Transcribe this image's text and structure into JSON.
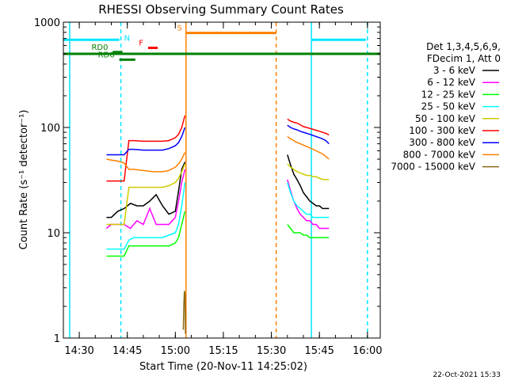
{
  "chart_data": {
    "type": "line",
    "title": "RHESSI Observing Summary Count Rates",
    "xlabel": "Start Time (20-Nov-11 14:25:02)",
    "ylabel": "Count Rate (s⁻¹ detector⁻¹)",
    "yscale": "log",
    "ylim": [
      1,
      1000
    ],
    "xlim": [
      "14:25:02",
      "16:04:00"
    ],
    "x_ticks": [
      "14:30",
      "14:45",
      "15:00",
      "15:15",
      "15:30",
      "15:45",
      "16:00"
    ],
    "y_ticks": [
      "1",
      "10",
      "100",
      "1000"
    ],
    "legend_header": [
      "Det 1,3,4,5,6,9,",
      "FDecim 1, Att 0"
    ],
    "legend_position": "right",
    "timestamp": "22-Oct-2021 15:33",
    "series": [
      {
        "name": "3 - 6 keV",
        "color": "#000000",
        "segments": [
          {
            "x": [
              "14:38:30",
              "14:40",
              "14:42",
              "14:44",
              "14:46",
              "14:48",
              "14:50",
              "14:52",
              "14:54",
              "14:56",
              "14:58",
              "15:00",
              "15:01",
              "15:02",
              "15:03"
            ],
            "y": [
              14,
              14,
              16,
              17,
              19,
              18,
              18,
              20,
              23,
              18,
              15,
              16,
              25,
              40,
              47
            ]
          },
          {
            "x": [
              "15:35",
              "15:36",
              "15:37",
              "15:38",
              "15:39",
              "15:40",
              "15:41",
              "15:42",
              "15:43",
              "15:44",
              "15:45",
              "15:46",
              "15:47",
              "15:48"
            ],
            "y": [
              55,
              44,
              36,
              32,
              28,
              24,
              22,
              20,
              19,
              18,
              18,
              17,
              17,
              17
            ]
          }
        ]
      },
      {
        "name": "6 - 12 keV",
        "color": "#ff00ff",
        "segments": [
          {
            "x": [
              "14:38:30",
              "14:40",
              "14:42",
              "14:44",
              "14:46",
              "14:48",
              "14:50",
              "14:52",
              "14:54",
              "14:56",
              "14:58",
              "15:00",
              "15:01",
              "15:02",
              "15:03"
            ],
            "y": [
              11,
              12,
              12,
              12,
              11,
              13,
              12,
              17,
              12,
              12,
              12,
              14,
              20,
              30,
              40
            ]
          },
          {
            "x": [
              "15:35",
              "15:36",
              "15:37",
              "15:38",
              "15:39",
              "15:40",
              "15:41",
              "15:42",
              "15:43",
              "15:44",
              "15:45",
              "15:46",
              "15:47",
              "15:48"
            ],
            "y": [
              32,
              25,
              20,
              17,
              15,
              14,
              13,
              13,
              12,
              12,
              11,
              11,
              11,
              11
            ]
          }
        ]
      },
      {
        "name": "12 - 25 keV",
        "color": "#00ff00",
        "segments": [
          {
            "x": [
              "14:38:30",
              "14:40",
              "14:42",
              "14:44",
              "14:45:30",
              "14:47",
              "14:50",
              "14:53",
              "14:56",
              "14:58",
              "15:00",
              "15:01",
              "15:02",
              "15:03"
            ],
            "y": [
              6,
              6,
              6,
              6,
              7.5,
              7.5,
              7.5,
              7.5,
              7.5,
              7.5,
              8,
              9,
              12,
              16
            ]
          },
          {
            "x": [
              "15:35",
              "15:36",
              "15:37",
              "15:38",
              "15:39",
              "15:40",
              "15:41",
              "15:42",
              "15:43",
              "15:44",
              "15:45",
              "15:46",
              "15:47",
              "15:48"
            ],
            "y": [
              12,
              11,
              10,
              10,
              10,
              9.5,
              9.5,
              9,
              9,
              9,
              9,
              9,
              9,
              9
            ]
          }
        ]
      },
      {
        "name": "25 - 50 keV",
        "color": "#00ffff",
        "segments": [
          {
            "x": [
              "14:38:30",
              "14:40",
              "14:42",
              "14:44",
              "14:45:30",
              "14:47",
              "14:50",
              "14:53",
              "14:56",
              "14:58",
              "15:00",
              "15:01",
              "15:02",
              "15:03"
            ],
            "y": [
              7,
              7,
              7,
              7,
              8.5,
              9,
              9,
              9,
              9,
              9.5,
              10,
              12,
              18,
              30
            ]
          },
          {
            "x": [
              "15:35",
              "15:36",
              "15:37",
              "15:38",
              "15:39",
              "15:40",
              "15:41",
              "15:42",
              "15:43",
              "15:44",
              "15:45",
              "15:46",
              "15:47",
              "15:48"
            ],
            "y": [
              30,
              24,
              20,
              18,
              17,
              16,
              15,
              15,
              14,
              14,
              14,
              14,
              14,
              14
            ]
          }
        ]
      },
      {
        "name": "50 - 100 keV",
        "color": "#cccc00",
        "segments": [
          {
            "x": [
              "14:38:30",
              "14:40",
              "14:42",
              "14:44",
              "14:45:30",
              "14:47",
              "14:50",
              "14:53",
              "14:56",
              "14:58",
              "15:00",
              "15:01",
              "15:02",
              "15:03"
            ],
            "y": [
              12,
              12,
              12,
              12,
              27,
              27,
              27,
              27,
              27,
              28,
              30,
              33,
              38,
              45
            ]
          },
          {
            "x": [
              "15:35",
              "15:36",
              "15:37",
              "15:38",
              "15:39",
              "15:40",
              "15:41",
              "15:42",
              "15:43",
              "15:44",
              "15:45",
              "15:46",
              "15:47",
              "15:48"
            ],
            "y": [
              45,
              42,
              40,
              38,
              37,
              36,
              35,
              35,
              34,
              34,
              33,
              32,
              32,
              32
            ]
          }
        ]
      },
      {
        "name": "100 - 300 keV",
        "color": "#ff0000",
        "segments": [
          {
            "x": [
              "14:38:30",
              "14:40",
              "14:42",
              "14:44",
              "14:45:30",
              "14:47",
              "14:50",
              "14:53",
              "14:56",
              "14:58",
              "15:00",
              "15:01",
              "15:02",
              "15:03"
            ],
            "y": [
              31,
              31,
              31,
              31,
              75,
              75,
              74,
              74,
              74,
              75,
              80,
              86,
              100,
              130
            ]
          },
          {
            "x": [
              "15:35",
              "15:36",
              "15:37",
              "15:38",
              "15:39",
              "15:40",
              "15:41",
              "15:42",
              "15:43",
              "15:44",
              "15:45",
              "15:46",
              "15:47",
              "15:48"
            ],
            "y": [
              120,
              115,
              112,
              110,
              106,
              102,
              100,
              98,
              96,
              94,
              92,
              90,
              88,
              85
            ]
          }
        ]
      },
      {
        "name": "300 - 800 keV",
        "color": "#0000ff",
        "segments": [
          {
            "x": [
              "14:38:30",
              "14:40",
              "14:42",
              "14:44",
              "14:45:30",
              "14:47",
              "14:50",
              "14:53",
              "14:56",
              "14:58",
              "15:00",
              "15:01",
              "15:02",
              "15:03"
            ],
            "y": [
              55,
              55,
              55,
              55,
              62,
              62,
              61,
              61,
              61,
              63,
              67,
              72,
              82,
              100
            ]
          },
          {
            "x": [
              "15:35",
              "15:36",
              "15:37",
              "15:38",
              "15:39",
              "15:40",
              "15:41",
              "15:42",
              "15:43",
              "15:44",
              "15:45",
              "15:46",
              "15:47",
              "15:48"
            ],
            "y": [
              105,
              100,
              97,
              95,
              92,
              90,
              88,
              86,
              84,
              82,
              80,
              78,
              75,
              70
            ]
          }
        ]
      },
      {
        "name": "800 - 7000 keV",
        "color": "#ff8000",
        "segments": [
          {
            "x": [
              "14:38:30",
              "14:40",
              "14:42",
              "14:44",
              "14:45:30",
              "14:47",
              "14:50",
              "14:53",
              "14:56",
              "14:58",
              "15:00",
              "15:01",
              "15:02",
              "15:03"
            ],
            "y": [
              50,
              49,
              48,
              46,
              40,
              40,
              39,
              38,
              38,
              39,
              42,
              45,
              50,
              58
            ]
          },
          {
            "x": [
              "15:35",
              "15:36",
              "15:37",
              "15:38",
              "15:39",
              "15:40",
              "15:41",
              "15:42",
              "15:43",
              "15:44",
              "15:45",
              "15:46",
              "15:47",
              "15:48"
            ],
            "y": [
              82,
              78,
              75,
              72,
              70,
              68,
              66,
              64,
              62,
              60,
              58,
              56,
              53,
              50
            ]
          }
        ]
      },
      {
        "name": "7000 - 15000 keV",
        "color": "#8b6914",
        "segments": [
          {
            "x": [
              "15:02:30",
              "15:02:40",
              "15:02:50",
              "15:03",
              "15:03:10"
            ],
            "y": [
              1.2,
              2.1,
              2.8,
              2.6,
              1.1
            ]
          }
        ]
      }
    ],
    "flags": [
      {
        "label": "N",
        "color": "#00e5ff",
        "segments": [
          [
            "14:25:02",
            "14:42:30"
          ],
          [
            "15:42:30",
            "15:59:30"
          ]
        ],
        "level": 680
      },
      {
        "label": "RD0",
        "color": "#008000",
        "segments": [
          [
            "14:40:30",
            "14:43:30"
          ]
        ],
        "level": 520
      },
      {
        "label": "RD6",
        "color": "#008000",
        "segments": [
          [
            "14:42:30",
            "14:47:30"
          ]
        ],
        "level": 440
      },
      {
        "label": "F",
        "color": "#ff0000",
        "segments": [
          [
            "14:51:30",
            "14:54:30"
          ]
        ],
        "level": 570
      },
      {
        "label": "S",
        "color": "#ff8000",
        "segments": [
          [
            "15:03:30",
            "15:31:30"
          ]
        ],
        "level": 790
      }
    ],
    "green_baseline": {
      "label": "",
      "color": "#008000",
      "level": 500
    },
    "vertical_lines": [
      {
        "x": "14:27:00",
        "color": "#00e5ff",
        "style": "solid"
      },
      {
        "x": "14:43:00",
        "color": "#00e5ff",
        "style": "dashed"
      },
      {
        "x": "15:42:30",
        "color": "#00e5ff",
        "style": "solid"
      },
      {
        "x": "16:00:00",
        "color": "#00e5ff",
        "style": "dashed"
      },
      {
        "x": "15:03:20",
        "color": "#ff8000",
        "style": "solid"
      },
      {
        "x": "15:31:30",
        "color": "#ff8000",
        "style": "dashed"
      }
    ]
  }
}
